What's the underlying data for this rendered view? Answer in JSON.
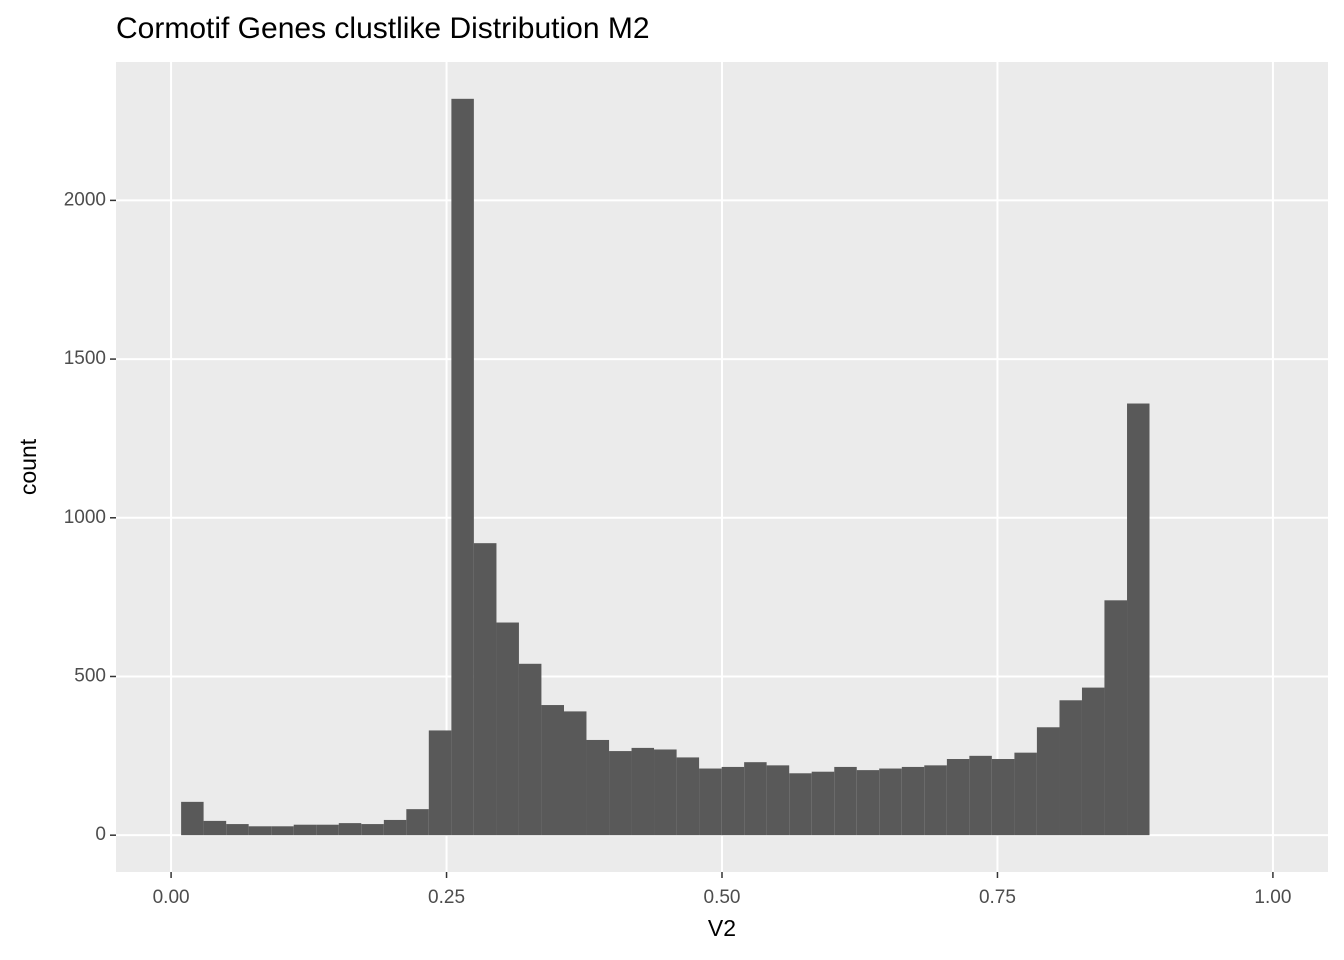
{
  "chart_data": {
    "type": "histogram",
    "title": "Cormotif Genes clustlike Distribution M2",
    "x_label": "V2",
    "y_label": "count",
    "color": "#595959",
    "bins": [
      0.0091,
      0.0295,
      0.05,
      0.0704,
      0.0909,
      0.1113,
      0.1317,
      0.1522,
      0.1726,
      0.1931,
      0.2135,
      0.2339,
      0.2544,
      0.2748,
      0.2953,
      0.3157,
      0.3361,
      0.3566,
      0.377,
      0.3975,
      0.4179,
      0.4383,
      0.4588,
      0.4792,
      0.4997,
      0.5201,
      0.5405,
      0.561,
      0.5814,
      0.6019,
      0.6223,
      0.6427,
      0.6632,
      0.6836,
      0.7041,
      0.7245,
      0.7449,
      0.7654,
      0.7858,
      0.8063,
      0.8267,
      0.8471,
      0.8676,
      0.888
    ],
    "counts": [
      105,
      45,
      35,
      28,
      28,
      33,
      33,
      38,
      35,
      48,
      82,
      330,
      2320,
      920,
      670,
      540,
      410,
      390,
      300,
      265,
      275,
      270,
      245,
      210,
      215,
      230,
      220,
      195,
      200,
      215,
      205,
      210,
      215,
      220,
      240,
      250,
      240,
      260,
      340,
      425,
      465,
      740,
      1360
    ],
    "xlim": [
      -0.05,
      1.05
    ],
    "ylim": [
      -116,
      2436
    ],
    "xticks": [
      {
        "value": 0,
        "label": "0.00"
      },
      {
        "value": 0.25,
        "label": "0.25"
      },
      {
        "value": 0.5,
        "label": "0.50"
      },
      {
        "value": 0.75,
        "label": "0.75"
      },
      {
        "value": 1,
        "label": "1.00"
      }
    ],
    "yticks": [
      0,
      500,
      1000,
      1500,
      2000
    ],
    "grid": true
  }
}
